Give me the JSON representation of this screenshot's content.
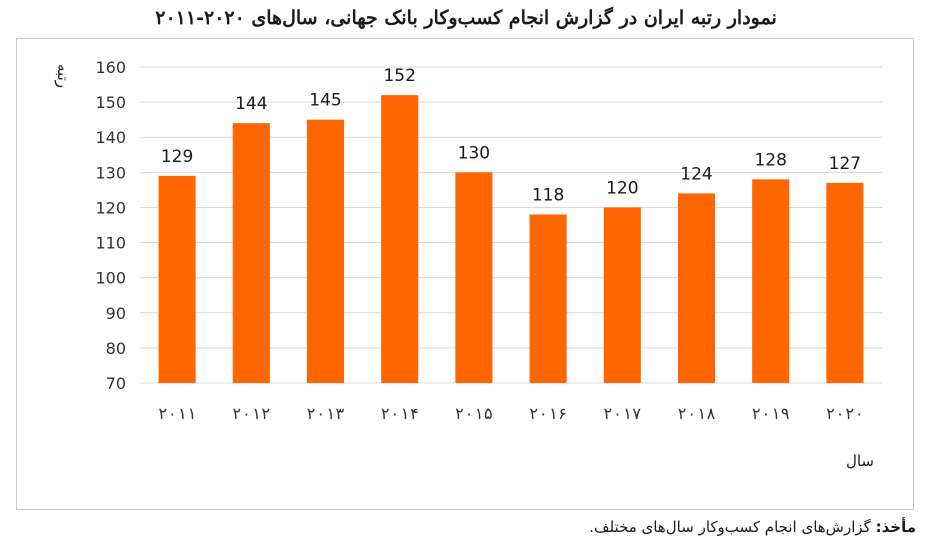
{
  "title": "نمودار رتبه ایران در گزارش انجام کسب‌وکار بانک جهانی، سال‌های ۲۰۲۰-۲۰۱۱",
  "source": {
    "label": "مأخذ:",
    "text": "گزارش‌های انجام کسب‌وکار سال‌های مختلف."
  },
  "chart_data": {
    "type": "bar",
    "categories": [
      "۲۰۱۱",
      "۲۰۱۲",
      "۲۰۱۳",
      "۲۰۱۴",
      "۲۰۱۵",
      "۲۰۱۶",
      "۲۰۱۷",
      "۲۰۱۸",
      "۲۰۱۹",
      "۲۰۲۰"
    ],
    "values": [
      129,
      144,
      145,
      152,
      130,
      118,
      120,
      124,
      128,
      127
    ],
    "data_labels": [
      "129",
      "144",
      "145",
      "152",
      "130",
      "118",
      "120",
      "124",
      "128",
      "127"
    ],
    "xlabel": "سال",
    "ylabel": "رتبه",
    "ylim": [
      70,
      160
    ],
    "yticks": [
      70,
      80,
      90,
      100,
      110,
      120,
      130,
      140,
      150,
      160
    ],
    "grid": true,
    "legend": "none",
    "colors": {
      "bar": "#FF6600",
      "grid": "#d9d9d9"
    }
  }
}
